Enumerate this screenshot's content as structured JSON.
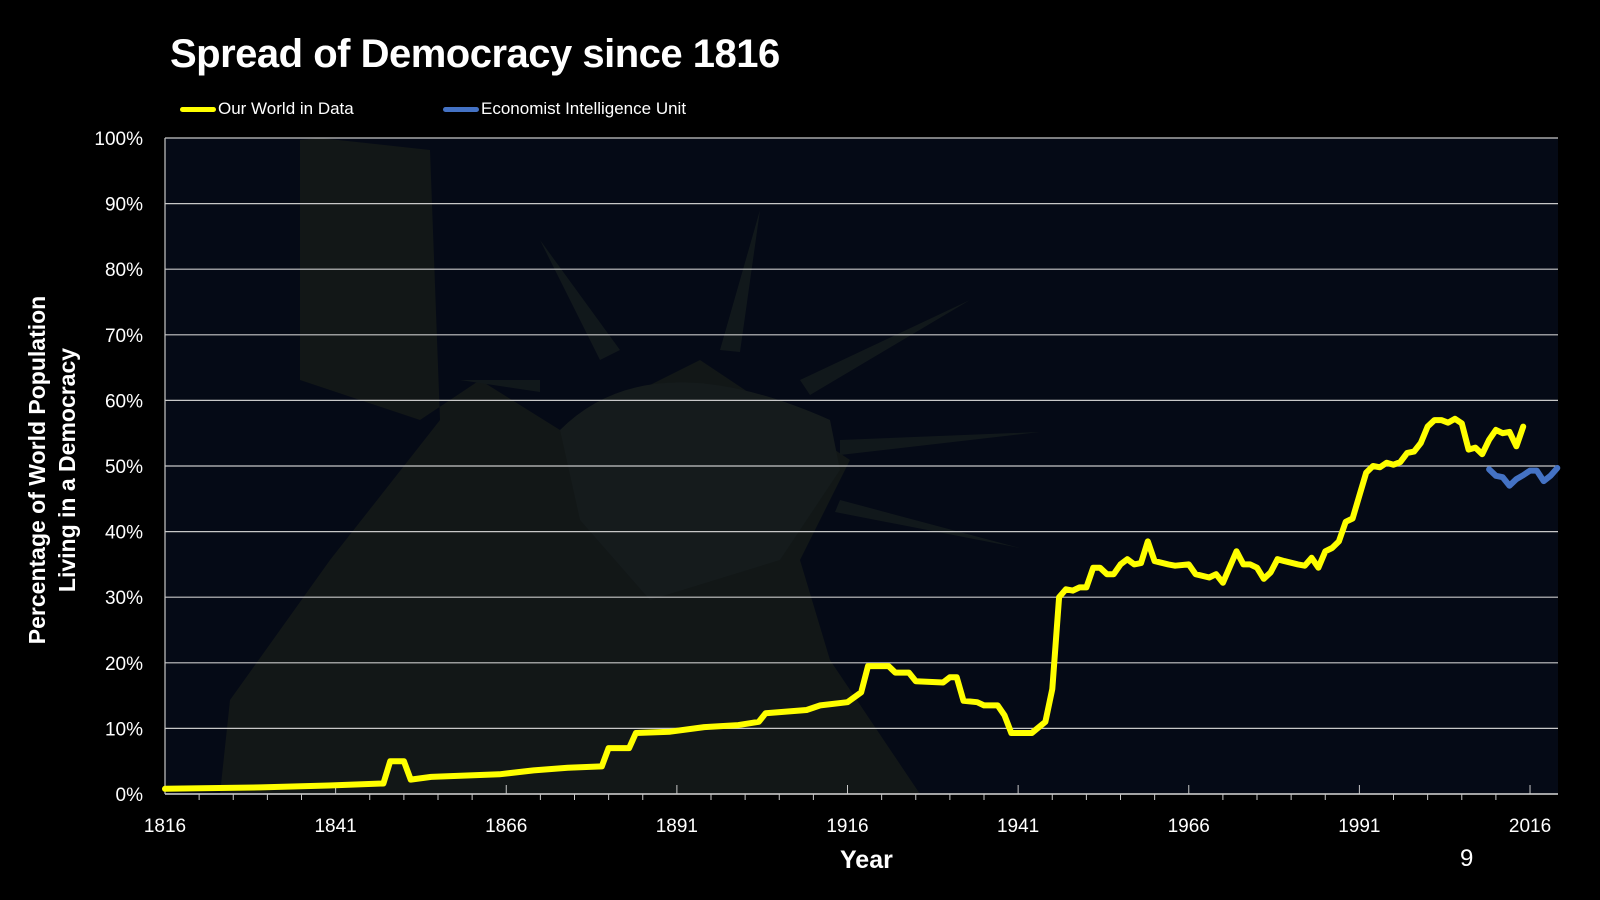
{
  "slide": {
    "page_number": "9"
  },
  "chart_data": {
    "type": "line",
    "title": "Spread of Democracy since 1816",
    "xlabel": "Year",
    "ylabel": [
      "Percentage of World Population",
      "Living in a Democracy"
    ],
    "xlim": [
      1816,
      2020
    ],
    "ylim": [
      0,
      100
    ],
    "x_ticks": [
      "1816",
      "1841",
      "1866",
      "1891",
      "1916",
      "1941",
      "1966",
      "1991",
      "2016"
    ],
    "y_ticks": [
      "0%",
      "10%",
      "20%",
      "30%",
      "40%",
      "50%",
      "60%",
      "70%",
      "80%",
      "90%",
      "100%"
    ],
    "grid": true,
    "legend_position": "top-left",
    "background": "#050a16",
    "series": [
      {
        "name": "Our World in Data",
        "color": "#ffff00",
        "points": [
          [
            1816,
            0.8
          ],
          [
            1830,
            1.0
          ],
          [
            1840,
            1.3
          ],
          [
            1848,
            1.6
          ],
          [
            1849,
            5.0
          ],
          [
            1851,
            5.0
          ],
          [
            1852,
            2.2
          ],
          [
            1855,
            2.6
          ],
          [
            1865,
            3.0
          ],
          [
            1870,
            3.6
          ],
          [
            1875,
            4.0
          ],
          [
            1880,
            4.2
          ],
          [
            1881,
            7.0
          ],
          [
            1884,
            7.0
          ],
          [
            1885,
            9.3
          ],
          [
            1890,
            9.5
          ],
          [
            1895,
            10.2
          ],
          [
            1900,
            10.5
          ],
          [
            1903,
            11.0
          ],
          [
            1904,
            12.3
          ],
          [
            1910,
            12.8
          ],
          [
            1912,
            13.5
          ],
          [
            1916,
            14.0
          ],
          [
            1918,
            15.5
          ],
          [
            1919,
            19.5
          ],
          [
            1922,
            19.5
          ],
          [
            1923,
            18.5
          ],
          [
            1925,
            18.5
          ],
          [
            1926,
            17.2
          ],
          [
            1930,
            17.0
          ],
          [
            1931,
            17.8
          ],
          [
            1932,
            17.8
          ],
          [
            1933,
            14.2
          ],
          [
            1935,
            14.0
          ],
          [
            1936,
            13.5
          ],
          [
            1938,
            13.5
          ],
          [
            1939,
            12.0
          ],
          [
            1940,
            9.3
          ],
          [
            1943,
            9.3
          ],
          [
            1945,
            11.0
          ],
          [
            1946,
            16.0
          ],
          [
            1947,
            30.0
          ],
          [
            1948,
            31.2
          ],
          [
            1949,
            31.0
          ],
          [
            1950,
            31.5
          ],
          [
            1951,
            31.5
          ],
          [
            1952,
            34.5
          ],
          [
            1953,
            34.5
          ],
          [
            1954,
            33.5
          ],
          [
            1955,
            33.5
          ],
          [
            1956,
            35.0
          ],
          [
            1957,
            35.8
          ],
          [
            1958,
            35.0
          ],
          [
            1959,
            35.2
          ],
          [
            1960,
            38.5
          ],
          [
            1961,
            35.5
          ],
          [
            1963,
            35.0
          ],
          [
            1964,
            34.8
          ],
          [
            1966,
            35.0
          ],
          [
            1967,
            33.5
          ],
          [
            1969,
            33.0
          ],
          [
            1970,
            33.5
          ],
          [
            1971,
            32.2
          ],
          [
            1973,
            37.0
          ],
          [
            1974,
            35.0
          ],
          [
            1975,
            35.0
          ],
          [
            1976,
            34.5
          ],
          [
            1977,
            32.8
          ],
          [
            1978,
            33.8
          ],
          [
            1979,
            35.8
          ],
          [
            1980,
            35.5
          ],
          [
            1982,
            35.0
          ],
          [
            1983,
            34.8
          ],
          [
            1984,
            36.0
          ],
          [
            1985,
            34.5
          ],
          [
            1986,
            37.0
          ],
          [
            1987,
            37.5
          ],
          [
            1988,
            38.5
          ],
          [
            1989,
            41.5
          ],
          [
            1990,
            42.0
          ],
          [
            1991,
            45.5
          ],
          [
            1992,
            49.0
          ],
          [
            1993,
            50.0
          ],
          [
            1994,
            49.8
          ],
          [
            1995,
            50.5
          ],
          [
            1996,
            50.2
          ],
          [
            1997,
            50.6
          ],
          [
            1998,
            52.0
          ],
          [
            1999,
            52.2
          ],
          [
            2000,
            53.5
          ],
          [
            2001,
            56.0
          ],
          [
            2002,
            57.0
          ],
          [
            2003,
            57.0
          ],
          [
            2004,
            56.6
          ],
          [
            2005,
            57.2
          ],
          [
            2006,
            56.5
          ],
          [
            2007,
            52.5
          ],
          [
            2008,
            52.8
          ],
          [
            2009,
            51.8
          ],
          [
            2010,
            54.0
          ],
          [
            2011,
            55.5
          ],
          [
            2012,
            55.0
          ],
          [
            2013,
            55.2
          ],
          [
            2014,
            53.0
          ],
          [
            2015,
            56.0
          ]
        ]
      },
      {
        "name": "Economist Intelligence Unit",
        "color": "#4472c4",
        "points": [
          [
            2010,
            49.5
          ],
          [
            2011,
            48.5
          ],
          [
            2012,
            48.3
          ],
          [
            2013,
            47.0
          ],
          [
            2014,
            48.0
          ],
          [
            2015,
            48.6
          ],
          [
            2016,
            49.3
          ],
          [
            2017,
            49.3
          ],
          [
            2018,
            47.7
          ],
          [
            2019,
            48.5
          ],
          [
            2020,
            49.7
          ]
        ]
      }
    ]
  }
}
